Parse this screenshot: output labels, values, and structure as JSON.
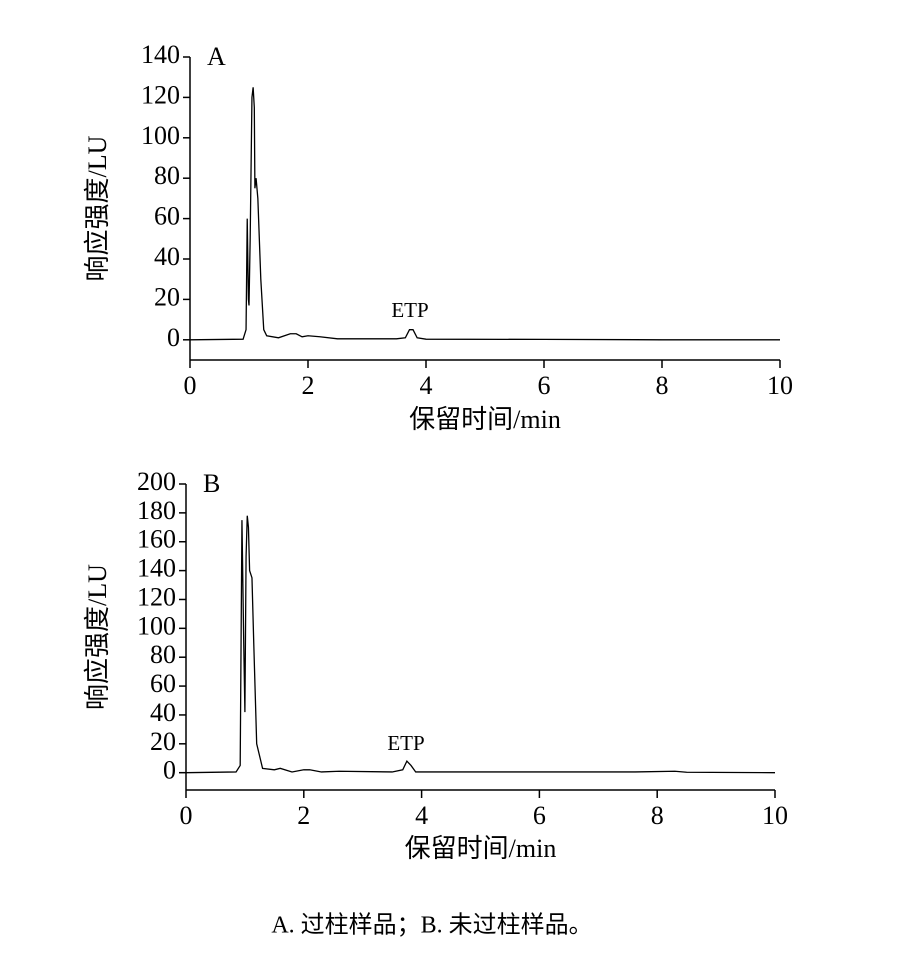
{
  "chart_data": [
    {
      "type": "line",
      "panel_label": "A",
      "annotation": "ETP",
      "xlabel": "保留时间/min",
      "ylabel": "响应强度/LU",
      "color": "#000000",
      "x": [
        0,
        0.9,
        0.95,
        0.97,
        0.99,
        1.0,
        1.02,
        1.05,
        1.07,
        1.09,
        1.1,
        1.12,
        1.15,
        1.2,
        1.25,
        1.3,
        1.5,
        1.7,
        1.8,
        1.9,
        2.0,
        2.2,
        2.5,
        3.0,
        3.5,
        3.65,
        3.72,
        3.78,
        3.85,
        4.0,
        6,
        8,
        10
      ],
      "values": [
        0,
        0.3,
        5,
        60,
        20,
        17,
        50,
        120,
        125,
        115,
        75,
        80,
        70,
        30,
        5,
        2,
        1,
        3,
        3,
        1.5,
        2,
        1.5,
        0.5,
        0.5,
        0.5,
        1,
        5,
        5,
        1,
        0.3,
        0.2,
        0,
        0
      ],
      "xlim": [
        0,
        10
      ],
      "xticks": [
        0,
        2,
        4,
        6,
        8,
        10
      ],
      "ylim": [
        -10,
        140
      ],
      "yticks": [
        0,
        20,
        40,
        60,
        80,
        100,
        120,
        140
      ]
    },
    {
      "type": "line",
      "panel_label": "B",
      "annotation": "ETP",
      "xlabel": "保留时间/min",
      "ylabel": "响应强度/LU",
      "color": "#000000",
      "x": [
        0,
        0.85,
        0.92,
        0.95,
        0.98,
        1.0,
        1.02,
        1.04,
        1.06,
        1.08,
        1.12,
        1.15,
        1.2,
        1.3,
        1.5,
        1.6,
        1.8,
        2.0,
        2.1,
        2.3,
        2.6,
        3.5,
        3.68,
        3.75,
        3.82,
        3.9,
        6.2,
        7.6,
        8.3,
        8.5,
        10
      ],
      "values": [
        0,
        0.5,
        5,
        175,
        90,
        42,
        150,
        178,
        170,
        140,
        135,
        90,
        20,
        3,
        2,
        3,
        0.5,
        2,
        2,
        0.5,
        1,
        0.5,
        2,
        8,
        5,
        0.5,
        0.5,
        0.5,
        1,
        0.3,
        0
      ],
      "xlim": [
        0,
        10
      ],
      "xticks": [
        0,
        2,
        4,
        6,
        8,
        10
      ],
      "ylim": [
        -12,
        200
      ],
      "yticks": [
        0,
        20,
        40,
        60,
        80,
        100,
        120,
        140,
        160,
        180,
        200
      ]
    }
  ],
  "caption": "A. 过柱样品；B. 未过柱样品。"
}
